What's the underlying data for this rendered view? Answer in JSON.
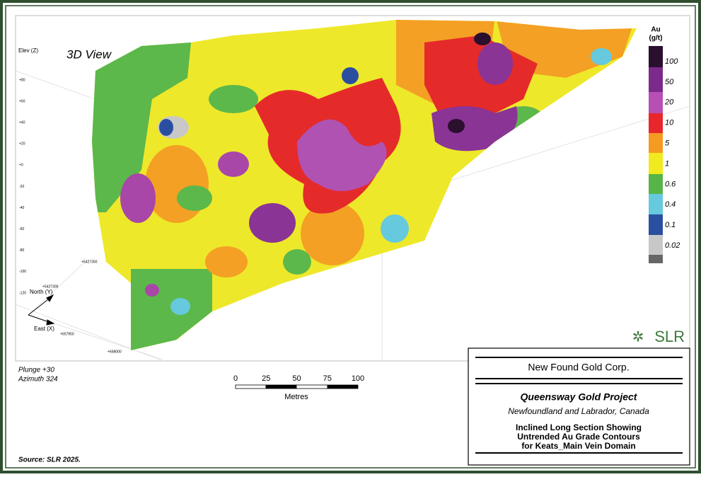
{
  "view": {
    "label": "3D View",
    "elev_axis_title": "Elev (Z)",
    "elev_ticks": [
      "+80",
      "+60",
      "+40",
      "+20",
      "+0",
      "-20",
      "-40",
      "-60",
      "-80",
      "-100",
      "-120"
    ],
    "north_ticks": [
      "+5427350",
      "+5427300"
    ],
    "east_ticks": [
      "+657950",
      "+658000"
    ],
    "north_label": "North (Y)",
    "east_label": "East (X)",
    "plunge": "Plunge +30",
    "azimuth": "Azimuth 324",
    "logo": "SLR"
  },
  "legend": {
    "title": [
      "Au",
      "(g/t)"
    ],
    "labels": [
      "100",
      "50",
      "20",
      "10",
      "5",
      "1",
      "0.6",
      "0.4",
      "0.1",
      "0.02"
    ]
  },
  "scale_bar": {
    "ticks": [
      "0",
      "25",
      "50",
      "75",
      "100"
    ],
    "unit": "Metres"
  },
  "title_block": {
    "company": "New Found Gold Corp.",
    "project": "Queensway Gold Project",
    "location": "Newfoundland and Labrador, Canada",
    "description": [
      "Inclined Long Section Showing",
      "Untrended Au Grade Contours",
      "for Keats_Main Vein Domain"
    ]
  },
  "source": "Source: SLR 2025."
}
